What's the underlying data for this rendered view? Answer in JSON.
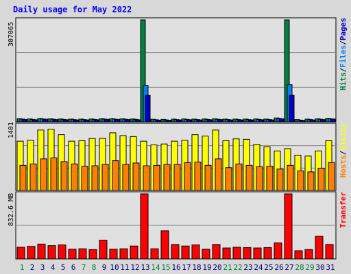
{
  "title": "Daily usage for May 2022",
  "colors": {
    "background": "#d8d8d8",
    "panel": "#e0e0e0",
    "title": "#0000ff",
    "hits": "#008040",
    "files": "#0080ff",
    "pages": "#0000c0",
    "visits": "#ffff00",
    "hosts": "#ff8000",
    "kbytes": "#ff0000",
    "weekend_label": "#008040",
    "weekday_label": "#000080"
  },
  "chart_data": [
    {
      "type": "bar",
      "panel": "hits",
      "scale_label": "307065",
      "side_label": {
        "parts": [
          "Hits",
          "/",
          "Files",
          "/",
          "Pages"
        ]
      },
      "categories": [
        "1",
        "2",
        "3",
        "4",
        "5",
        "6",
        "7",
        "8",
        "9",
        "10",
        "11",
        "12",
        "13",
        "14",
        "15",
        "16",
        "17",
        "18",
        "19",
        "20",
        "21",
        "22",
        "23",
        "24",
        "25",
        "26",
        "27",
        "28",
        "29",
        "30",
        "31"
      ],
      "ylim": [
        0,
        307065
      ],
      "series": [
        {
          "key": "hits",
          "values": [
            10000,
            9000,
            10500,
            9500,
            9000,
            8500,
            8500,
            9000,
            10000,
            10000,
            9500,
            9000,
            307065,
            8000,
            7500,
            8500,
            9000,
            8500,
            9000,
            9500,
            8500,
            8500,
            8500,
            9000,
            8500,
            12000,
            307065,
            7000,
            8500,
            9500,
            11000
          ]
        },
        {
          "key": "files",
          "values": [
            8500,
            7500,
            9000,
            8000,
            7500,
            7000,
            7000,
            7500,
            8500,
            8500,
            8000,
            7500,
            110000,
            6500,
            6000,
            7000,
            7500,
            7000,
            7500,
            8000,
            7000,
            7000,
            7000,
            7500,
            7000,
            10500,
            112000,
            5500,
            7000,
            8000,
            9500
          ]
        },
        {
          "key": "pages",
          "values": [
            7500,
            6500,
            8000,
            7000,
            6500,
            6000,
            6000,
            6500,
            7500,
            7500,
            7000,
            6500,
            80000,
            5500,
            5000,
            6000,
            6500,
            6000,
            6500,
            7000,
            6000,
            6000,
            6000,
            6500,
            6000,
            9500,
            80000,
            4500,
            6000,
            7000,
            8500
          ]
        }
      ]
    },
    {
      "type": "bar",
      "panel": "visits",
      "scale_label": "1401",
      "side_label": {
        "parts": [
          "Hosts",
          "/",
          "Visits"
        ]
      },
      "categories": [
        "1",
        "2",
        "3",
        "4",
        "5",
        "6",
        "7",
        "8",
        "9",
        "10",
        "11",
        "12",
        "13",
        "14",
        "15",
        "16",
        "17",
        "18",
        "19",
        "20",
        "21",
        "22",
        "23",
        "24",
        "25",
        "26",
        "27",
        "28",
        "29",
        "30",
        "31"
      ],
      "ylim": [
        0,
        1401
      ],
      "series": [
        {
          "key": "visits",
          "values": [
            1060,
            1080,
            1300,
            1320,
            1200,
            1060,
            1070,
            1120,
            1120,
            1240,
            1180,
            1160,
            1060,
            980,
            1000,
            1060,
            1080,
            1200,
            1170,
            1300,
            1070,
            1110,
            1100,
            990,
            940,
            850,
            900,
            760,
            740,
            850,
            1070
          ]
        },
        {
          "key": "hosts",
          "values": [
            540,
            570,
            680,
            700,
            620,
            570,
            520,
            530,
            560,
            640,
            560,
            590,
            530,
            540,
            560,
            560,
            600,
            610,
            540,
            680,
            490,
            570,
            540,
            510,
            520,
            460,
            540,
            420,
            400,
            480,
            600
          ]
        }
      ]
    },
    {
      "type": "bar",
      "panel": "kbytes",
      "scale_label": "832.6 MB",
      "side_label": {
        "parts": [
          "Transfer"
        ]
      },
      "categories": [
        "1",
        "2",
        "3",
        "4",
        "5",
        "6",
        "7",
        "8",
        "9",
        "10",
        "11",
        "12",
        "13",
        "14",
        "15",
        "16",
        "17",
        "18",
        "19",
        "20",
        "21",
        "22",
        "23",
        "24",
        "25",
        "26",
        "27",
        "28",
        "29",
        "30",
        "31"
      ],
      "ylim": [
        0,
        832.6
      ],
      "series": [
        {
          "key": "kbytes",
          "values": [
            150,
            160,
            190,
            170,
            180,
            125,
            130,
            120,
            240,
            125,
            130,
            165,
            832.6,
            130,
            360,
            185,
            165,
            180,
            125,
            185,
            140,
            150,
            145,
            140,
            145,
            205,
            832.6,
            105,
            120,
            290,
            185
          ]
        }
      ]
    }
  ],
  "days": {
    "labels": [
      "1",
      "2",
      "3",
      "4",
      "5",
      "6",
      "7",
      "8",
      "9",
      "10",
      "11",
      "12",
      "13",
      "14",
      "15",
      "16",
      "17",
      "18",
      "19",
      "20",
      "21",
      "22",
      "23",
      "24",
      "25",
      "26",
      "27",
      "28",
      "29",
      "30",
      "31"
    ],
    "weekend": [
      true,
      false,
      false,
      false,
      false,
      false,
      true,
      true,
      false,
      false,
      false,
      false,
      false,
      true,
      true,
      false,
      false,
      false,
      false,
      false,
      true,
      true,
      false,
      false,
      false,
      false,
      false,
      true,
      true,
      false,
      false
    ]
  }
}
